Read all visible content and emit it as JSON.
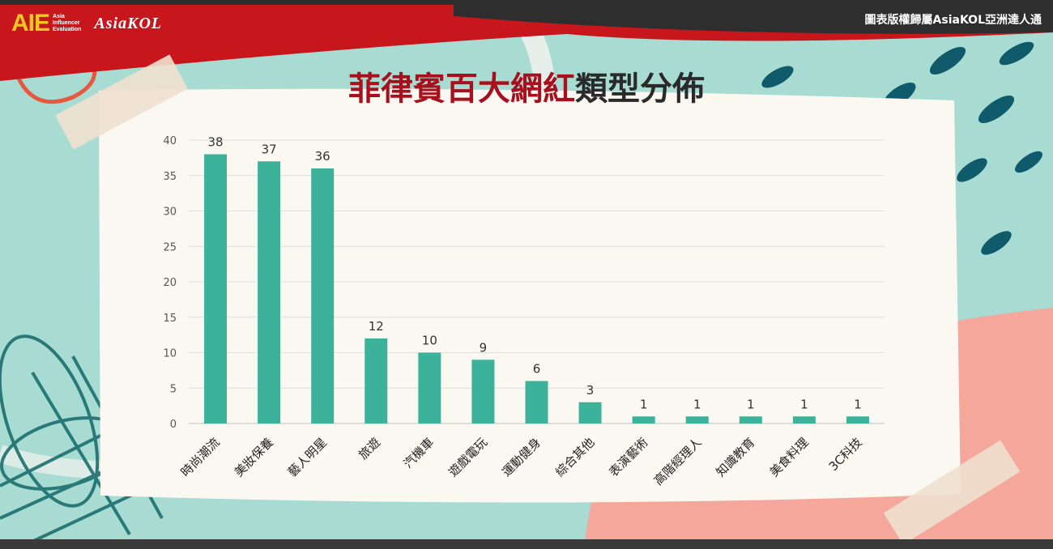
{
  "header": {
    "logo_aie": "AIE",
    "logo_aie_sub": [
      "Asia",
      "Influencer",
      "Evaluation"
    ],
    "logo_kol": "AsiaKOL",
    "credit": "圖表版權歸屬AsiaKOL亞洲達人通"
  },
  "title_red": "菲律賓百大網紅",
  "title_dark": "類型分佈",
  "colors": {
    "bar": "#3cb29a",
    "banner": "#c8161d",
    "accent_title": "#a8101e",
    "background": "#a8dbd2",
    "card": "#fbf8f2"
  },
  "chart_data": {
    "type": "bar",
    "categories": [
      "時尚潮流",
      "美妝保養",
      "藝人明星",
      "旅遊",
      "汽機車",
      "遊戲電玩",
      "運動健身",
      "綜合其他",
      "表演藝術",
      "高階經理人",
      "知識教育",
      "美食料理",
      "3C科技"
    ],
    "values": [
      38,
      37,
      36,
      12,
      10,
      9,
      6,
      3,
      1,
      1,
      1,
      1,
      1
    ],
    "yticks": [
      0,
      5,
      10,
      15,
      20,
      25,
      30,
      35,
      40
    ],
    "ylim": [
      0,
      40
    ],
    "grid": true,
    "legend": "none"
  }
}
